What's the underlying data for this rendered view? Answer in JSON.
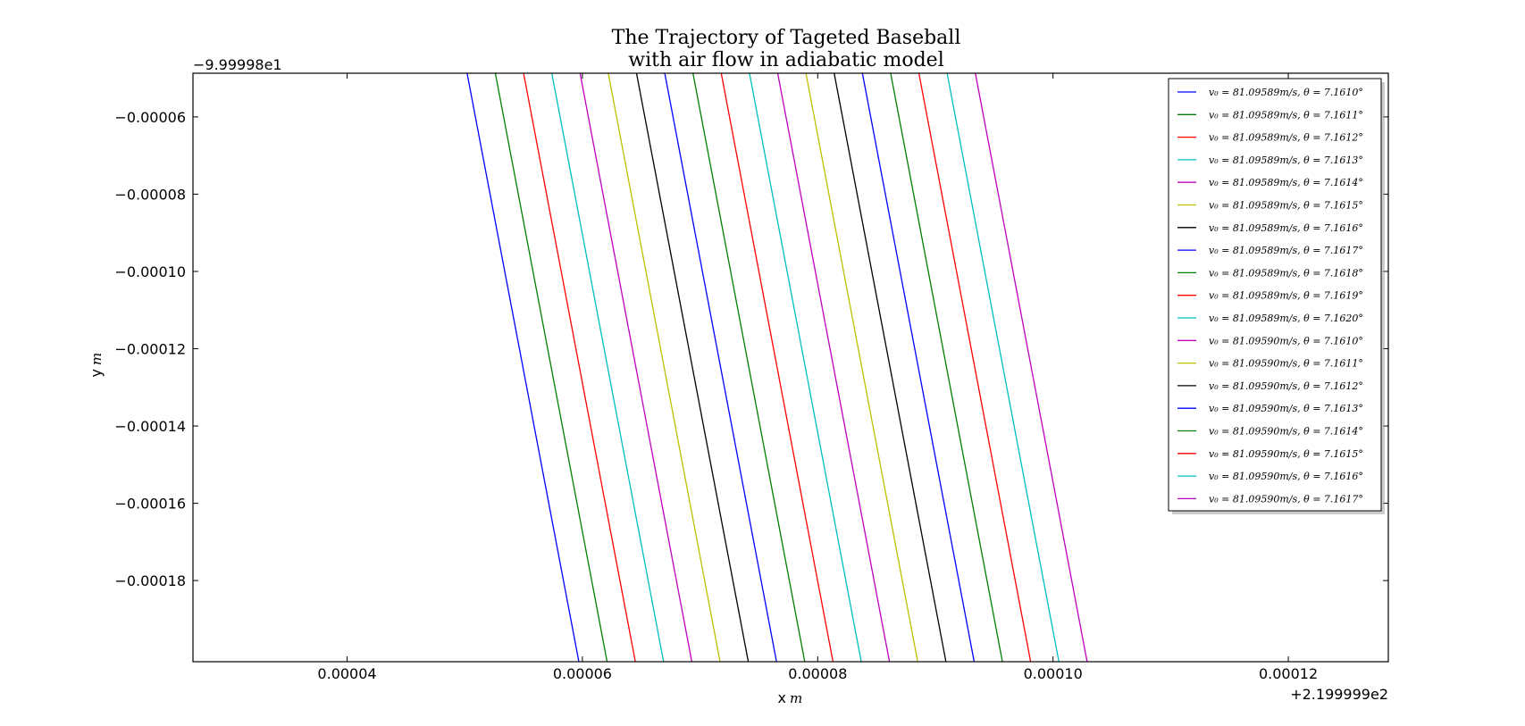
{
  "chart_data": {
    "type": "line",
    "title": "The Trajectory of Tageted Baseball",
    "subtitle": "with air flow in adiabatic model",
    "xlabel": "x",
    "xlabel_unit": "m",
    "ylabel": "y",
    "ylabel_unit": "m",
    "x_offset_label": "+2.199999e2",
    "y_offset_label": "−9.99998e1",
    "xlim": [
      2.69e-05,
      0.0001285
    ],
    "ylim": [
      -0.000201,
      -4.87e-05
    ],
    "x_ticks": [
      {
        "value": 4e-05,
        "label": "0.00004"
      },
      {
        "value": 6e-05,
        "label": "0.00006"
      },
      {
        "value": 8e-05,
        "label": "0.00008"
      },
      {
        "value": 0.0001,
        "label": "0.00010"
      },
      {
        "value": 0.00012,
        "label": "0.00012"
      }
    ],
    "y_ticks": [
      {
        "value": -6e-05,
        "label": "−0.00006"
      },
      {
        "value": -8e-05,
        "label": "−0.00008"
      },
      {
        "value": -0.0001,
        "label": "−0.00010"
      },
      {
        "value": -0.00012,
        "label": "−0.00012"
      },
      {
        "value": -0.00014,
        "label": "−0.00014"
      },
      {
        "value": -0.00016,
        "label": "−0.00016"
      },
      {
        "value": -0.00018,
        "label": "−0.00018"
      }
    ],
    "legend_position": "top-right",
    "series": [
      {
        "name": "v₀ = 81.09589m/s, θ = 7.1610°",
        "color": "#0000ff",
        "x": [
          5.02e-05,
          5.97e-05
        ],
        "y": [
          -4.87e-05,
          -0.000201
        ]
      },
      {
        "name": "v₀ = 81.09589m/s, θ = 7.1611°",
        "color": "#008000",
        "x": [
          5.26e-05,
          6.21e-05
        ],
        "y": [
          -4.87e-05,
          -0.000201
        ]
      },
      {
        "name": "v₀ = 81.09589m/s, θ = 7.1612°",
        "color": "#ff0000",
        "x": [
          5.5e-05,
          6.45e-05
        ],
        "y": [
          -4.87e-05,
          -0.000201
        ]
      },
      {
        "name": "v₀ = 81.09589m/s, θ = 7.1613°",
        "color": "#00bfbf",
        "x": [
          5.74e-05,
          6.69e-05
        ],
        "y": [
          -4.87e-05,
          -0.000201
        ]
      },
      {
        "name": "v₀ = 81.09589m/s, θ = 7.1614°",
        "color": "#bf00bf",
        "x": [
          5.98e-05,
          6.93e-05
        ],
        "y": [
          -4.87e-05,
          -0.000201
        ]
      },
      {
        "name": "v₀ = 81.09589m/s, θ = 7.1615°",
        "color": "#bfbf00",
        "x": [
          6.22e-05,
          7.17e-05
        ],
        "y": [
          -4.87e-05,
          -0.000201
        ]
      },
      {
        "name": "v₀ = 81.09589m/s, θ = 7.1616°",
        "color": "#000000",
        "x": [
          6.46e-05,
          7.41e-05
        ],
        "y": [
          -4.87e-05,
          -0.000201
        ]
      },
      {
        "name": "v₀ = 81.09589m/s, θ = 7.1617°",
        "color": "#0000ff",
        "x": [
          6.7e-05,
          7.65e-05
        ],
        "y": [
          -4.87e-05,
          -0.000201
        ]
      },
      {
        "name": "v₀ = 81.09589m/s, θ = 7.1618°",
        "color": "#008000",
        "x": [
          6.94e-05,
          7.89e-05
        ],
        "y": [
          -4.87e-05,
          -0.000201
        ]
      },
      {
        "name": "v₀ = 81.09589m/s, θ = 7.1619°",
        "color": "#ff0000",
        "x": [
          7.18e-05,
          8.13e-05
        ],
        "y": [
          -4.87e-05,
          -0.000201
        ]
      },
      {
        "name": "v₀ = 81.09589m/s, θ = 7.1620°",
        "color": "#00bfbf",
        "x": [
          7.42e-05,
          8.37e-05
        ],
        "y": [
          -4.87e-05,
          -0.000201
        ]
      },
      {
        "name": "v₀ = 81.09590m/s, θ = 7.1610°",
        "color": "#bf00bf",
        "x": [
          7.66e-05,
          8.61e-05
        ],
        "y": [
          -4.87e-05,
          -0.000201
        ]
      },
      {
        "name": "v₀ = 81.09590m/s, θ = 7.1611°",
        "color": "#bfbf00",
        "x": [
          7.9e-05,
          8.85e-05
        ],
        "y": [
          -4.87e-05,
          -0.000201
        ]
      },
      {
        "name": "v₀ = 81.09590m/s, θ = 7.1612°",
        "color": "#000000",
        "x": [
          8.14e-05,
          9.09e-05
        ],
        "y": [
          -4.87e-05,
          -0.000201
        ]
      },
      {
        "name": "v₀ = 81.09590m/s, θ = 7.1613°",
        "color": "#0000ff",
        "x": [
          8.38e-05,
          9.33e-05
        ],
        "y": [
          -4.87e-05,
          -0.000201
        ]
      },
      {
        "name": "v₀ = 81.09590m/s, θ = 7.1614°",
        "color": "#008000",
        "x": [
          8.62e-05,
          9.57e-05
        ],
        "y": [
          -4.87e-05,
          -0.000201
        ]
      },
      {
        "name": "v₀ = 81.09590m/s, θ = 7.1615°",
        "color": "#ff0000",
        "x": [
          8.86e-05,
          9.81e-05
        ],
        "y": [
          -4.87e-05,
          -0.000201
        ]
      },
      {
        "name": "v₀ = 81.09590m/s, θ = 7.1616°",
        "color": "#00bfbf",
        "x": [
          9.1e-05,
          0.0001005
        ],
        "y": [
          -4.87e-05,
          -0.000201
        ]
      },
      {
        "name": "v₀ = 81.09590m/s, θ = 7.1617°",
        "color": "#bf00bf",
        "x": [
          9.34e-05,
          0.0001029
        ],
        "y": [
          -4.87e-05,
          -0.000201
        ]
      }
    ]
  }
}
